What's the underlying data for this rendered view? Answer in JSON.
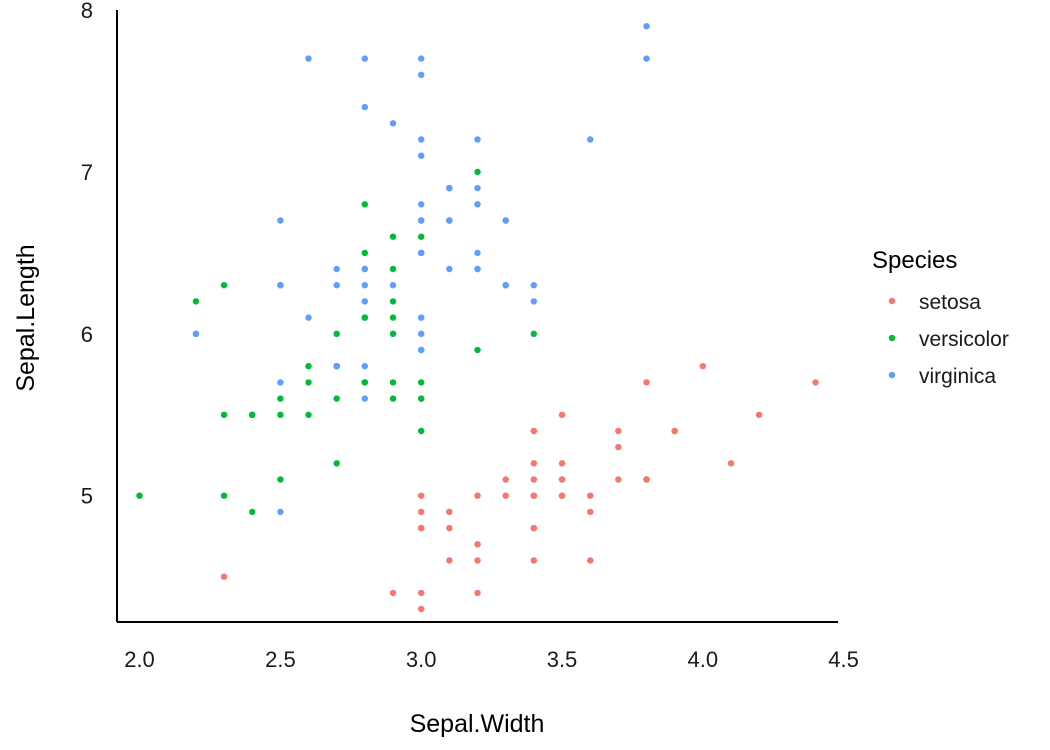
{
  "chart_data": {
    "type": "scatter",
    "title": "",
    "xlabel": "Sepal.Width",
    "ylabel": "Sepal.Length",
    "xlim": [
      1.92,
      4.48
    ],
    "ylim": [
      4.22,
      8.0
    ],
    "x_ticks": [
      "2.0",
      "2.5",
      "3.0",
      "3.5",
      "4.0",
      "4.5"
    ],
    "y_ticks": [
      "5",
      "6",
      "7",
      "8"
    ],
    "grid": false,
    "legend": {
      "title": "Species",
      "position": "right"
    },
    "series": [
      {
        "name": "setosa",
        "color": "#F8766D",
        "points": [
          [
            3.5,
            5.1
          ],
          [
            3.0,
            4.9
          ],
          [
            3.2,
            4.7
          ],
          [
            3.1,
            4.6
          ],
          [
            3.6,
            5.0
          ],
          [
            3.9,
            5.4
          ],
          [
            3.4,
            4.6
          ],
          [
            3.4,
            5.0
          ],
          [
            2.9,
            4.4
          ],
          [
            3.1,
            4.9
          ],
          [
            3.7,
            5.4
          ],
          [
            3.4,
            4.8
          ],
          [
            3.0,
            4.8
          ],
          [
            3.0,
            4.3
          ],
          [
            4.0,
            5.8
          ],
          [
            4.4,
            5.7
          ],
          [
            3.9,
            5.4
          ],
          [
            3.5,
            5.1
          ],
          [
            3.8,
            5.7
          ],
          [
            3.8,
            5.1
          ],
          [
            3.4,
            5.4
          ],
          [
            3.7,
            5.1
          ],
          [
            3.6,
            4.6
          ],
          [
            3.3,
            5.1
          ],
          [
            3.4,
            4.8
          ],
          [
            3.0,
            5.0
          ],
          [
            3.4,
            5.0
          ],
          [
            3.5,
            5.2
          ],
          [
            3.4,
            5.2
          ],
          [
            3.2,
            4.7
          ],
          [
            3.1,
            4.8
          ],
          [
            3.4,
            5.4
          ],
          [
            4.1,
            5.2
          ],
          [
            4.2,
            5.5
          ],
          [
            3.1,
            4.9
          ],
          [
            3.2,
            5.0
          ],
          [
            3.5,
            5.5
          ],
          [
            3.6,
            4.9
          ],
          [
            3.0,
            4.4
          ],
          [
            3.4,
            5.1
          ],
          [
            3.5,
            5.0
          ],
          [
            2.3,
            4.5
          ],
          [
            3.2,
            4.4
          ],
          [
            3.5,
            5.0
          ],
          [
            3.8,
            5.1
          ],
          [
            3.0,
            4.8
          ],
          [
            3.8,
            5.1
          ],
          [
            3.2,
            4.6
          ],
          [
            3.7,
            5.3
          ],
          [
            3.3,
            5.0
          ]
        ]
      },
      {
        "name": "versicolor",
        "color": "#00BA38",
        "points": [
          [
            3.2,
            7.0
          ],
          [
            3.2,
            6.4
          ],
          [
            3.1,
            6.9
          ],
          [
            2.3,
            5.5
          ],
          [
            2.8,
            6.5
          ],
          [
            2.8,
            5.7
          ],
          [
            3.3,
            6.3
          ],
          [
            2.4,
            4.9
          ],
          [
            2.9,
            6.6
          ],
          [
            2.7,
            5.2
          ],
          [
            2.0,
            5.0
          ],
          [
            3.0,
            5.9
          ],
          [
            2.2,
            6.0
          ],
          [
            2.9,
            6.1
          ],
          [
            2.9,
            5.6
          ],
          [
            3.1,
            6.7
          ],
          [
            3.0,
            5.6
          ],
          [
            2.7,
            5.8
          ],
          [
            2.2,
            6.2
          ],
          [
            2.5,
            5.6
          ],
          [
            3.2,
            5.9
          ],
          [
            2.8,
            6.1
          ],
          [
            2.5,
            6.3
          ],
          [
            2.8,
            6.1
          ],
          [
            2.9,
            6.4
          ],
          [
            3.0,
            6.6
          ],
          [
            2.8,
            6.8
          ],
          [
            3.0,
            6.7
          ],
          [
            2.9,
            6.0
          ],
          [
            2.6,
            5.7
          ],
          [
            2.4,
            5.5
          ],
          [
            2.4,
            5.5
          ],
          [
            2.7,
            5.8
          ],
          [
            2.7,
            6.0
          ],
          [
            3.0,
            5.4
          ],
          [
            3.4,
            6.0
          ],
          [
            3.1,
            6.7
          ],
          [
            2.3,
            6.3
          ],
          [
            3.0,
            5.6
          ],
          [
            2.5,
            5.5
          ],
          [
            2.6,
            5.5
          ],
          [
            3.0,
            6.1
          ],
          [
            2.6,
            5.8
          ],
          [
            2.3,
            5.0
          ],
          [
            2.7,
            5.6
          ],
          [
            3.0,
            5.7
          ],
          [
            2.9,
            5.7
          ],
          [
            2.9,
            6.2
          ],
          [
            2.5,
            5.1
          ],
          [
            2.8,
            5.7
          ]
        ]
      },
      {
        "name": "virginica",
        "color": "#619CFF",
        "points": [
          [
            3.3,
            6.3
          ],
          [
            2.7,
            5.8
          ],
          [
            3.0,
            7.1
          ],
          [
            2.9,
            6.3
          ],
          [
            3.0,
            6.5
          ],
          [
            3.0,
            7.6
          ],
          [
            2.5,
            4.9
          ],
          [
            2.9,
            7.3
          ],
          [
            2.5,
            6.7
          ],
          [
            3.6,
            7.2
          ],
          [
            3.2,
            6.5
          ],
          [
            2.7,
            6.4
          ],
          [
            3.0,
            6.8
          ],
          [
            2.5,
            5.7
          ],
          [
            2.8,
            5.8
          ],
          [
            3.2,
            6.4
          ],
          [
            3.0,
            6.5
          ],
          [
            3.8,
            7.7
          ],
          [
            2.6,
            7.7
          ],
          [
            2.2,
            6.0
          ],
          [
            3.2,
            6.9
          ],
          [
            2.8,
            5.6
          ],
          [
            2.8,
            7.7
          ],
          [
            2.7,
            6.3
          ],
          [
            3.3,
            6.7
          ],
          [
            3.2,
            7.2
          ],
          [
            2.8,
            6.2
          ],
          [
            3.0,
            6.1
          ],
          [
            2.8,
            6.4
          ],
          [
            3.0,
            7.2
          ],
          [
            2.8,
            7.4
          ],
          [
            3.8,
            7.9
          ],
          [
            2.8,
            6.4
          ],
          [
            2.8,
            6.3
          ],
          [
            2.6,
            6.1
          ],
          [
            3.0,
            7.7
          ],
          [
            3.4,
            6.3
          ],
          [
            3.1,
            6.4
          ],
          [
            3.0,
            6.0
          ],
          [
            3.1,
            6.9
          ],
          [
            3.1,
            6.7
          ],
          [
            3.1,
            6.9
          ],
          [
            2.7,
            5.8
          ],
          [
            3.2,
            6.8
          ],
          [
            3.3,
            6.7
          ],
          [
            3.0,
            6.7
          ],
          [
            2.5,
            6.3
          ],
          [
            3.0,
            6.5
          ],
          [
            3.4,
            6.2
          ],
          [
            3.0,
            5.9
          ]
        ]
      }
    ]
  }
}
